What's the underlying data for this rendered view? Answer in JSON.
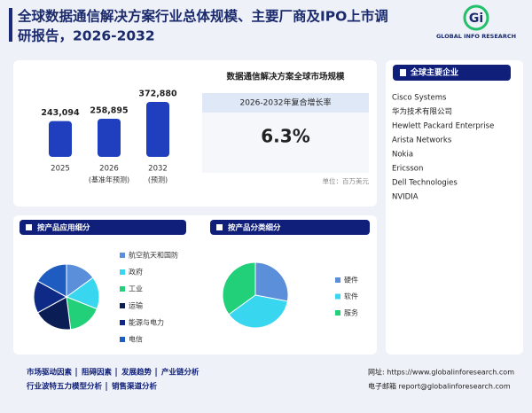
{
  "header": {
    "title_lines": [
      "全球数据通信解决方案行业总体规模、主要厂商及IPO上市调",
      "研报告，2026-2032"
    ],
    "logo_mark": "Gi",
    "logo_text": "GLOBAL INFO RESEARCH"
  },
  "market_panel": {
    "title": "数据通信解决方案全球市场规模",
    "cagr_label": "2026-2032年复合增长率",
    "cagr_value": "6.3%",
    "unit": "单位：百万美元"
  },
  "companies": {
    "title": "全球主要企业",
    "items": [
      "Cisco Systems",
      "华为技术有限公司",
      "Hewlett Packard Enterprise",
      "Arista Networks",
      "Nokia",
      "Ericsson",
      "Dell Technologies",
      "NVIDIA"
    ]
  },
  "chart_data": [
    {
      "type": "bar",
      "categories": [
        "2025",
        "2026",
        "2032"
      ],
      "category_notes": [
        null,
        "(基准年预测)",
        "(预测)"
      ],
      "values": [
        243094,
        258895,
        372880
      ],
      "value_labels": [
        "243,094",
        "258,895",
        "372,880"
      ],
      "color": "#1f3fbf"
    },
    {
      "type": "pie",
      "title": "按产品应用细分",
      "categories": [
        "航空航天和国防",
        "政府",
        "工业",
        "运输",
        "能源与电力",
        "电信"
      ],
      "values": [
        15,
        16,
        17,
        19,
        16,
        17
      ],
      "colors": [
        "#5b8fd9",
        "#38d6ef",
        "#22d07a",
        "#0b1d55",
        "#0e2a86",
        "#1f5cc2"
      ]
    },
    {
      "type": "pie",
      "title": "按产品分类细分",
      "categories": [
        "硬件",
        "软件",
        "服务"
      ],
      "values": [
        28,
        37,
        35
      ],
      "colors": [
        "#5b8fd9",
        "#38d6ef",
        "#22d07a"
      ]
    }
  ],
  "footer": {
    "links": [
      [
        "市场驱动因素",
        "阻碍因素",
        "发展趋势",
        "产业链分析"
      ],
      [
        "行业波特五力模型分析",
        "销售渠道分析"
      ]
    ],
    "website": "网址: https://www.globalinforesearch.com",
    "email": "电子邮箱 report@globalinforesearch.com"
  }
}
